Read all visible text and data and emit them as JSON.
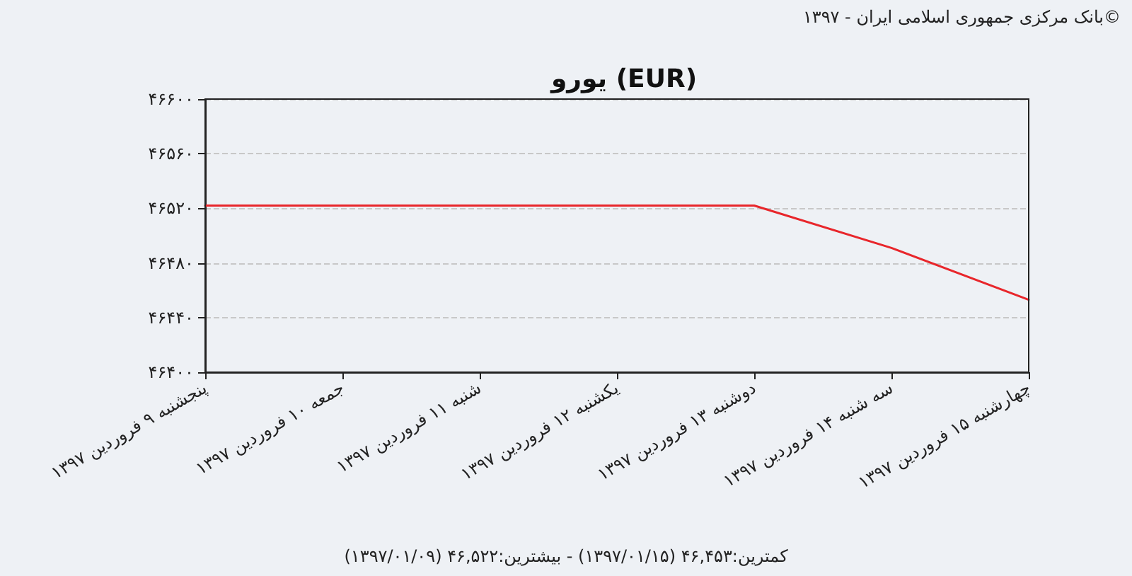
{
  "chart_data": {
    "type": "line",
    "title": "یورو (EUR)",
    "annotations": [
      "بانک مرکزی جمهوری اسلامی ایران - ۱۳۹۷©",
      "کمترین:۴۶,۴۵۳ (۱۳۹۷/۰۱/۱۵) - بیشترین:۴۶,۵۲۲ (۱۳۹۷/۰۱/۰۹)"
    ],
    "categories": [
      "پنجشنبه ۹ فروردین ۱۳۹۷",
      "جمعه ۱۰ فروردین ۱۳۹۷",
      "شنبه ۱۱ فروردین ۱۳۹۷",
      "یکشنبه ۱۲ فروردین ۱۳۹۷",
      "دوشنبه ۱۳ فروردین ۱۳۹۷",
      "سه شنبه ۱۴ فروردین ۱۳۹۷",
      "چهارشنبه ۱۵ فروردین ۱۳۹۷"
    ],
    "series": [
      {
        "color": "#e8262b",
        "values": [
          46522,
          46522,
          46522,
          46522,
          46522,
          46491,
          46453
        ]
      }
    ],
    "ylim": [
      46400,
      46600
    ],
    "yticks": [
      {
        "value": 46400,
        "label": "۴۶۴۰۰"
      },
      {
        "value": 46440,
        "label": "۴۶۴۴۰"
      },
      {
        "value": 46480,
        "label": "۴۶۴۸۰"
      },
      {
        "value": 46520,
        "label": "۴۶۵۲۰"
      },
      {
        "value": 46560,
        "label": "۴۶۵۶۰"
      },
      {
        "value": 46600,
        "label": "۴۶۶۰۰"
      }
    ],
    "grid": "y",
    "marker": "none",
    "line_style": "solid"
  }
}
